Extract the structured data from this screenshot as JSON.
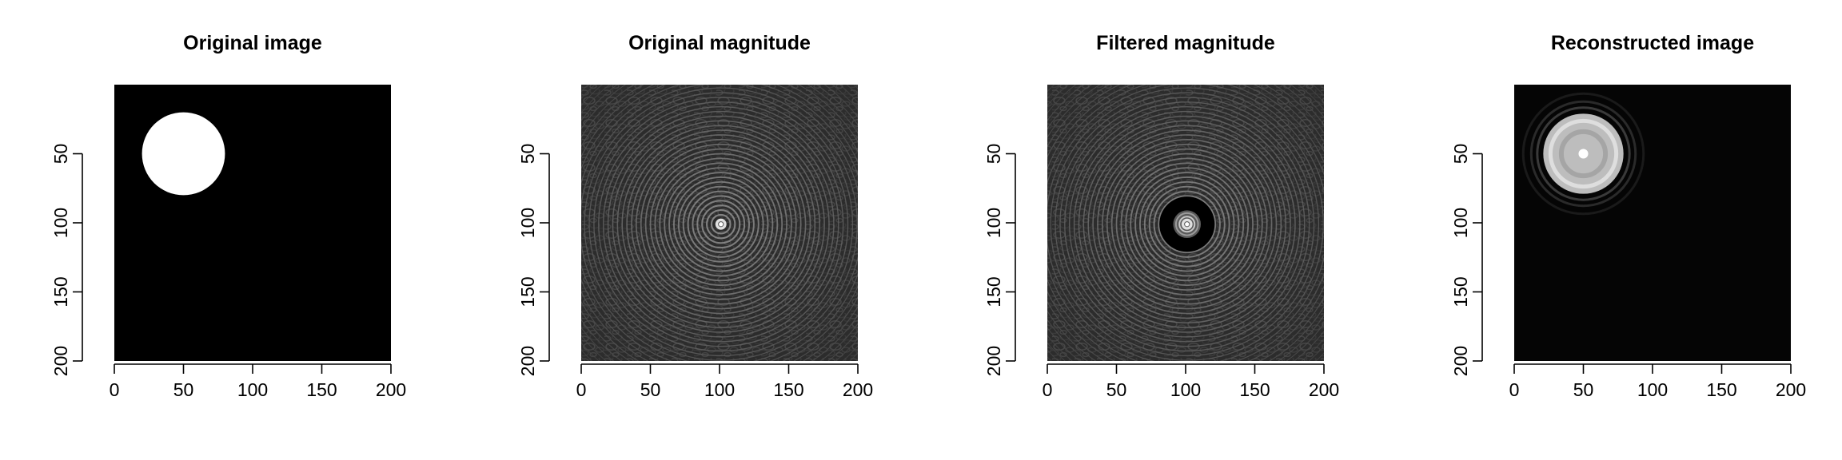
{
  "chart_data": [
    {
      "type": "heatmap",
      "title": "Original image",
      "xlim": [
        0,
        200
      ],
      "ylim": [
        200,
        0
      ],
      "xticks": [
        "0",
        "50",
        "100",
        "150",
        "200"
      ],
      "yticks": [
        "50",
        "100",
        "150",
        "200"
      ],
      "content": "disk",
      "background_color": "#000000",
      "disk": {
        "center_x": 50,
        "center_y": 50,
        "radius": 30,
        "color": "#ffffff"
      }
    },
    {
      "type": "heatmap",
      "title": "Original magnitude",
      "xlim": [
        0,
        200
      ],
      "ylim": [
        200,
        0
      ],
      "xticks": [
        "0",
        "50",
        "100",
        "150",
        "200"
      ],
      "yticks": [
        "50",
        "100",
        "150",
        "200"
      ],
      "content": "spectrum",
      "background_color": "#303030",
      "spectrum": {
        "center_x": 101,
        "center_y": 101,
        "ring_spacing": 3.4,
        "max_radius": 150,
        "masked_radius": 0
      }
    },
    {
      "type": "heatmap",
      "title": "Filtered magnitude",
      "xlim": [
        0,
        200
      ],
      "ylim": [
        200,
        0
      ],
      "xticks": [
        "0",
        "50",
        "100",
        "150",
        "200"
      ],
      "yticks": [
        "50",
        "100",
        "150",
        "200"
      ],
      "content": "spectrum",
      "background_color": "#303030",
      "spectrum": {
        "center_x": 101,
        "center_y": 101,
        "ring_spacing": 3.4,
        "max_radius": 150,
        "masked_inner_radius": 10,
        "masked_outer_radius": 20
      }
    },
    {
      "type": "heatmap",
      "title": "Reconstructed image",
      "xlim": [
        0,
        200
      ],
      "ylim": [
        200,
        0
      ],
      "xticks": [
        "0",
        "50",
        "100",
        "150",
        "200"
      ],
      "yticks": [
        "50",
        "100",
        "150",
        "200"
      ],
      "content": "reconstruction",
      "background_color": "#050505",
      "disk": {
        "center_x": 50,
        "center_y": 50,
        "radius": 29,
        "color": "#c8c8c8"
      }
    }
  ]
}
